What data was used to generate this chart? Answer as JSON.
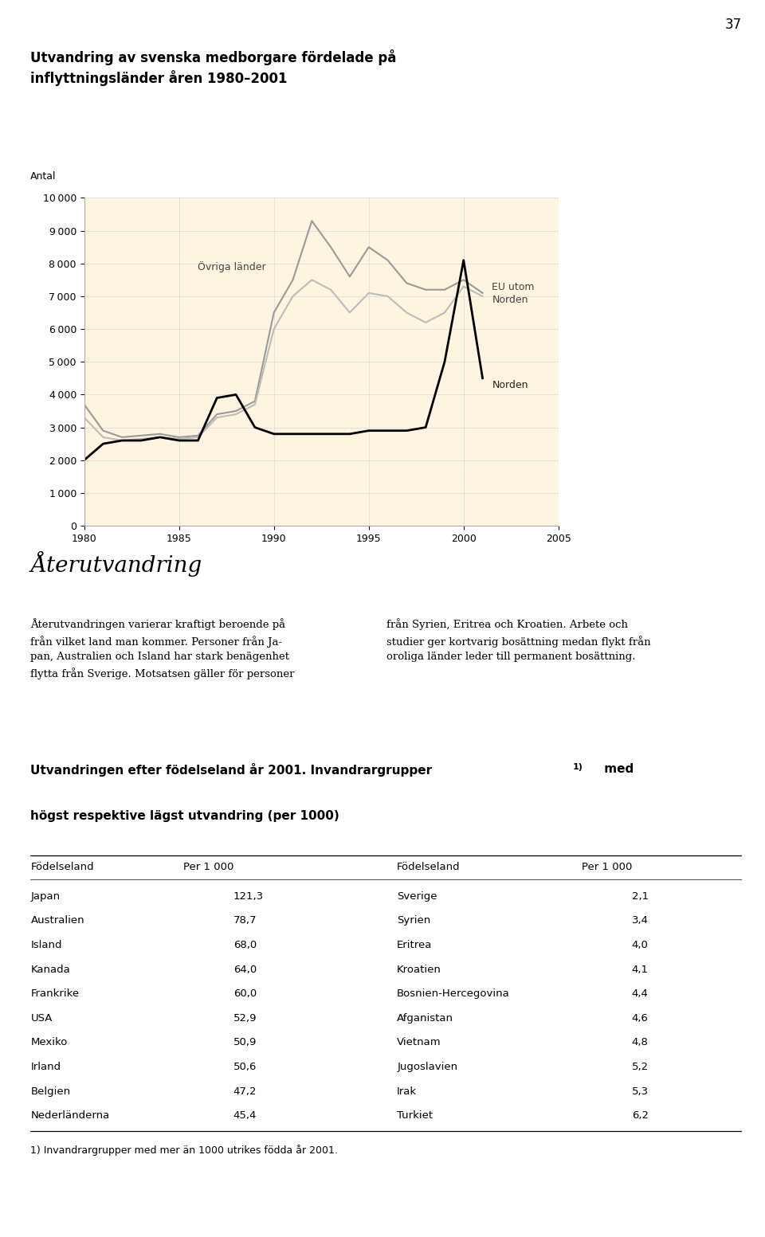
{
  "page_number": "37",
  "chart_title_line1": "Utvandring av svenska medborgare fördelade på",
  "chart_title_line2": "inflyttningsländer åren 1980–2001",
  "ylabel": "Antal",
  "years": [
    1980,
    1981,
    1982,
    1983,
    1984,
    1985,
    1986,
    1987,
    1988,
    1989,
    1990,
    1991,
    1992,
    1993,
    1994,
    1995,
    1996,
    1997,
    1998,
    1999,
    2000,
    2001
  ],
  "ovriga_lander": [
    3700,
    2900,
    2700,
    2750,
    2800,
    2700,
    2750,
    3400,
    3500,
    3800,
    6500,
    7500,
    9300,
    8500,
    7600,
    8500,
    8100,
    7400,
    7200,
    7200,
    7500,
    7100
  ],
  "eu_utom_norden": [
    3300,
    2700,
    2600,
    2650,
    2700,
    2650,
    2700,
    3300,
    3400,
    3700,
    6000,
    7000,
    7500,
    7200,
    6500,
    7100,
    7000,
    6500,
    6200,
    6500,
    7300,
    7000
  ],
  "norden": [
    2000,
    2500,
    2600,
    2600,
    2700,
    2600,
    2600,
    3900,
    4000,
    3000,
    2800,
    2800,
    2800,
    2800,
    2800,
    2900,
    2900,
    2900,
    3000,
    5000,
    8100,
    4500
  ],
  "bg_color": "#fdf5e0",
  "ovriga_color": "#999999",
  "eu_color": "#bbbbbb",
  "norden_color": "#000000",
  "grid_color": "#dddddd",
  "ylim": [
    0,
    10000
  ],
  "yticks": [
    0,
    1000,
    2000,
    3000,
    4000,
    5000,
    6000,
    7000,
    8000,
    9000,
    10000
  ],
  "xticks": [
    1980,
    1985,
    1990,
    1995,
    2000,
    2005
  ],
  "section_title": "Återutvandring",
  "para_left_lines": [
    "Återutvandringen varierar kraftigt beroende på",
    "från vilket land man kommer. Personer från Ja-",
    "pan, Australien och Island har stark benägenhet",
    "flytta från Sverige. Motsatsen gäller för personer"
  ],
  "para_right_lines": [
    "från Syrien, Eritrea och Kroatien. Arbete och",
    "studier ger kortvarig bosättning medan flykt från",
    "oroliga länder leder till permanent bosättning."
  ],
  "table_title_main": "Utvandringen efter födelseland år 2001. Invandrargrupper",
  "table_title_super": "1)",
  "table_title_end": "med",
  "table_title_line2": "högst respektive lägst utvandring (per 1000)",
  "table_header": [
    "Födelseland",
    "Per 1 000",
    "Födelseland",
    "Per 1 000"
  ],
  "table_left": [
    [
      "Japan",
      "121,3"
    ],
    [
      "Australien",
      "78,7"
    ],
    [
      "Island",
      "68,0"
    ],
    [
      "Kanada",
      "64,0"
    ],
    [
      "Frankrike",
      "60,0"
    ],
    [
      "USA",
      "52,9"
    ],
    [
      "Mexiko",
      "50,9"
    ],
    [
      "Irland",
      "50,6"
    ],
    [
      "Belgien",
      "47,2"
    ],
    [
      "Nederländerna",
      "45,4"
    ]
  ],
  "table_right": [
    [
      "Sverige",
      "2,1"
    ],
    [
      "Syrien",
      "3,4"
    ],
    [
      "Eritrea",
      "4,0"
    ],
    [
      "Kroatien",
      "4,1"
    ],
    [
      "Bosnien-Hercegovina",
      "4,4"
    ],
    [
      "Afganistan",
      "4,6"
    ],
    [
      "Vietnam",
      "4,8"
    ],
    [
      "Jugoslavien",
      "5,2"
    ],
    [
      "Irak",
      "5,3"
    ],
    [
      "Turkiet",
      "6,2"
    ]
  ],
  "footnote": "1) Invandrargrupper med mer än 1000 utrikes födda år 2001."
}
